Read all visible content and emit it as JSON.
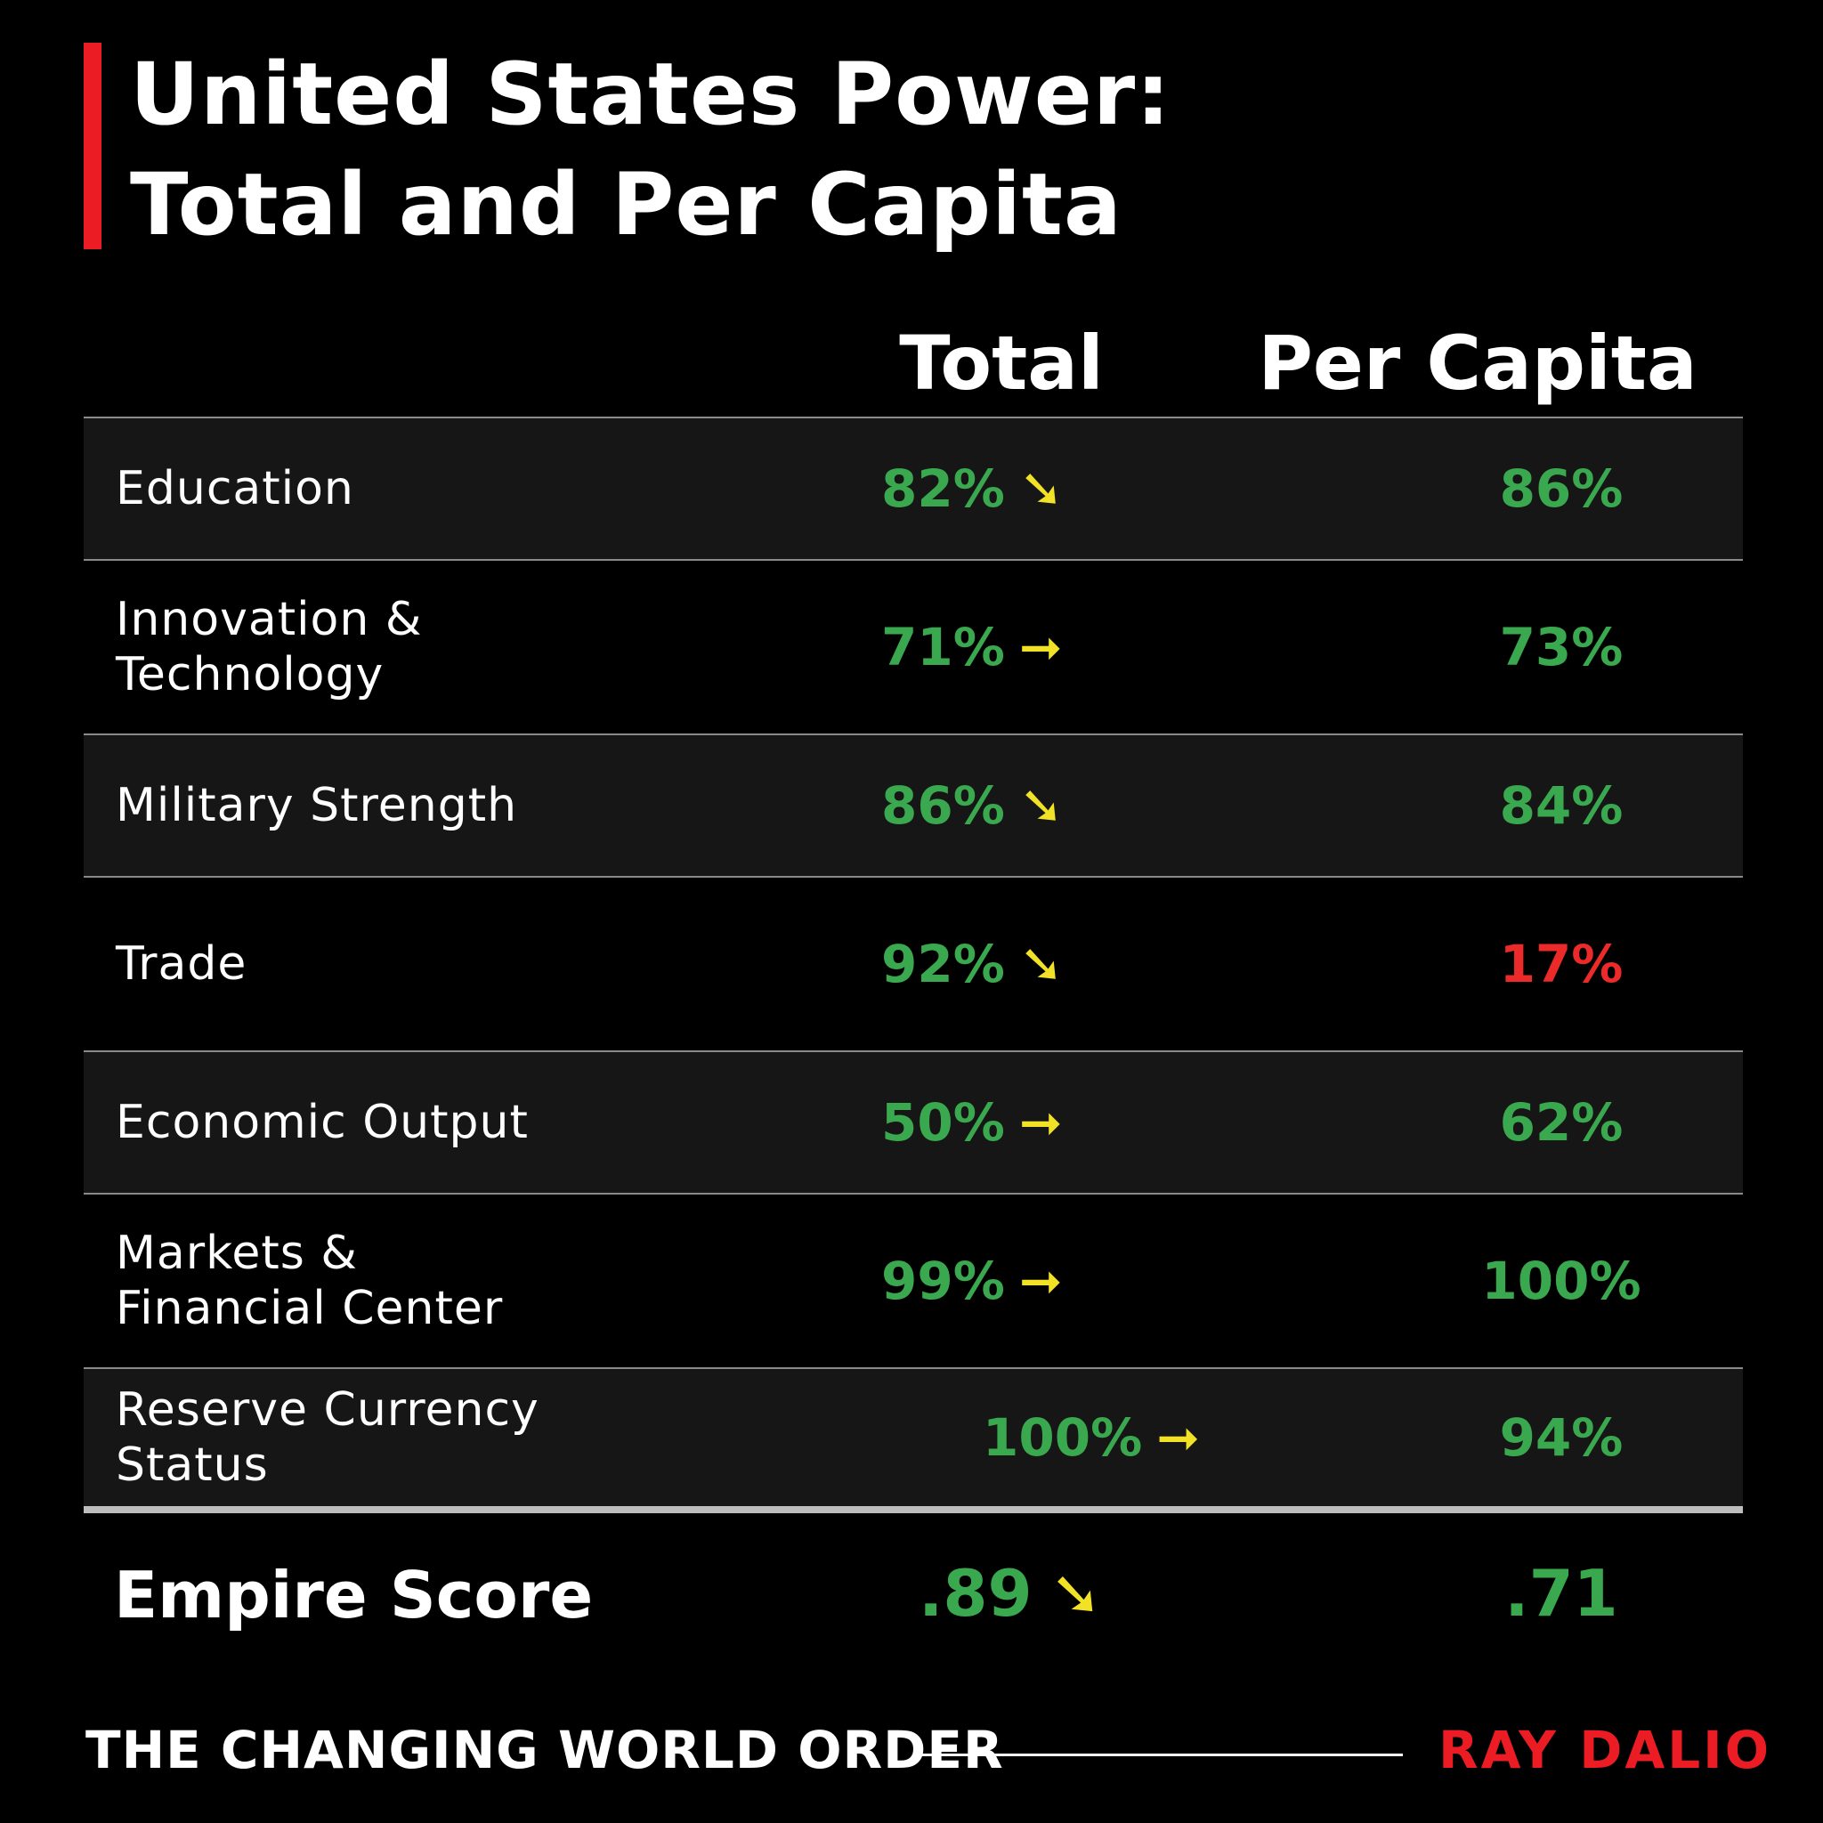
{
  "title": {
    "line1": "United States Power:",
    "line2": "Total and Per Capita"
  },
  "columns": {
    "total": "Total",
    "per_capita": "Per Capita"
  },
  "rows": [
    {
      "category": "Education",
      "total": "82%",
      "trend": "down",
      "trend_glyph": "➘",
      "per_capita": "86%",
      "per_capita_color": "#3aa84e"
    },
    {
      "category": "Innovation &\nTechnology",
      "total": "71%",
      "trend": "flat",
      "trend_glyph": "➞",
      "per_capita": "73%",
      "per_capita_color": "#3aa84e"
    },
    {
      "category": "Military Strength",
      "total": "86%",
      "trend": "down",
      "trend_glyph": "➘",
      "per_capita": "84%",
      "per_capita_color": "#3aa84e"
    },
    {
      "category": "Trade",
      "total": "92%",
      "trend": "down",
      "trend_glyph": "➘",
      "per_capita": "17%",
      "per_capita_color": "#ec2a2a"
    },
    {
      "category": "Economic Output",
      "total": "50%",
      "trend": "flat",
      "trend_glyph": "➞",
      "per_capita": "62%",
      "per_capita_color": "#3aa84e"
    },
    {
      "category": "Markets &\nFinancial Center",
      "total": "99%",
      "trend": "flat",
      "trend_glyph": "➞",
      "per_capita": "100%",
      "per_capita_color": "#3aa84e"
    },
    {
      "category": "Reserve Currency\nStatus",
      "total": "100%",
      "trend": "flat",
      "trend_glyph": "➞",
      "per_capita": "94%",
      "per_capita_color": "#3aa84e"
    }
  ],
  "empire_score": {
    "label": "Empire Score",
    "total": ".89",
    "trend": "down",
    "trend_glyph": "➘",
    "per_capita": ".71"
  },
  "footer": {
    "left": "THE CHANGING WORLD ORDER",
    "right": "RAY DALIO"
  },
  "colors": {
    "accent_red": "#ec1c24",
    "value_green": "#3aa84e",
    "arrow_yellow": "#f2e227"
  }
}
